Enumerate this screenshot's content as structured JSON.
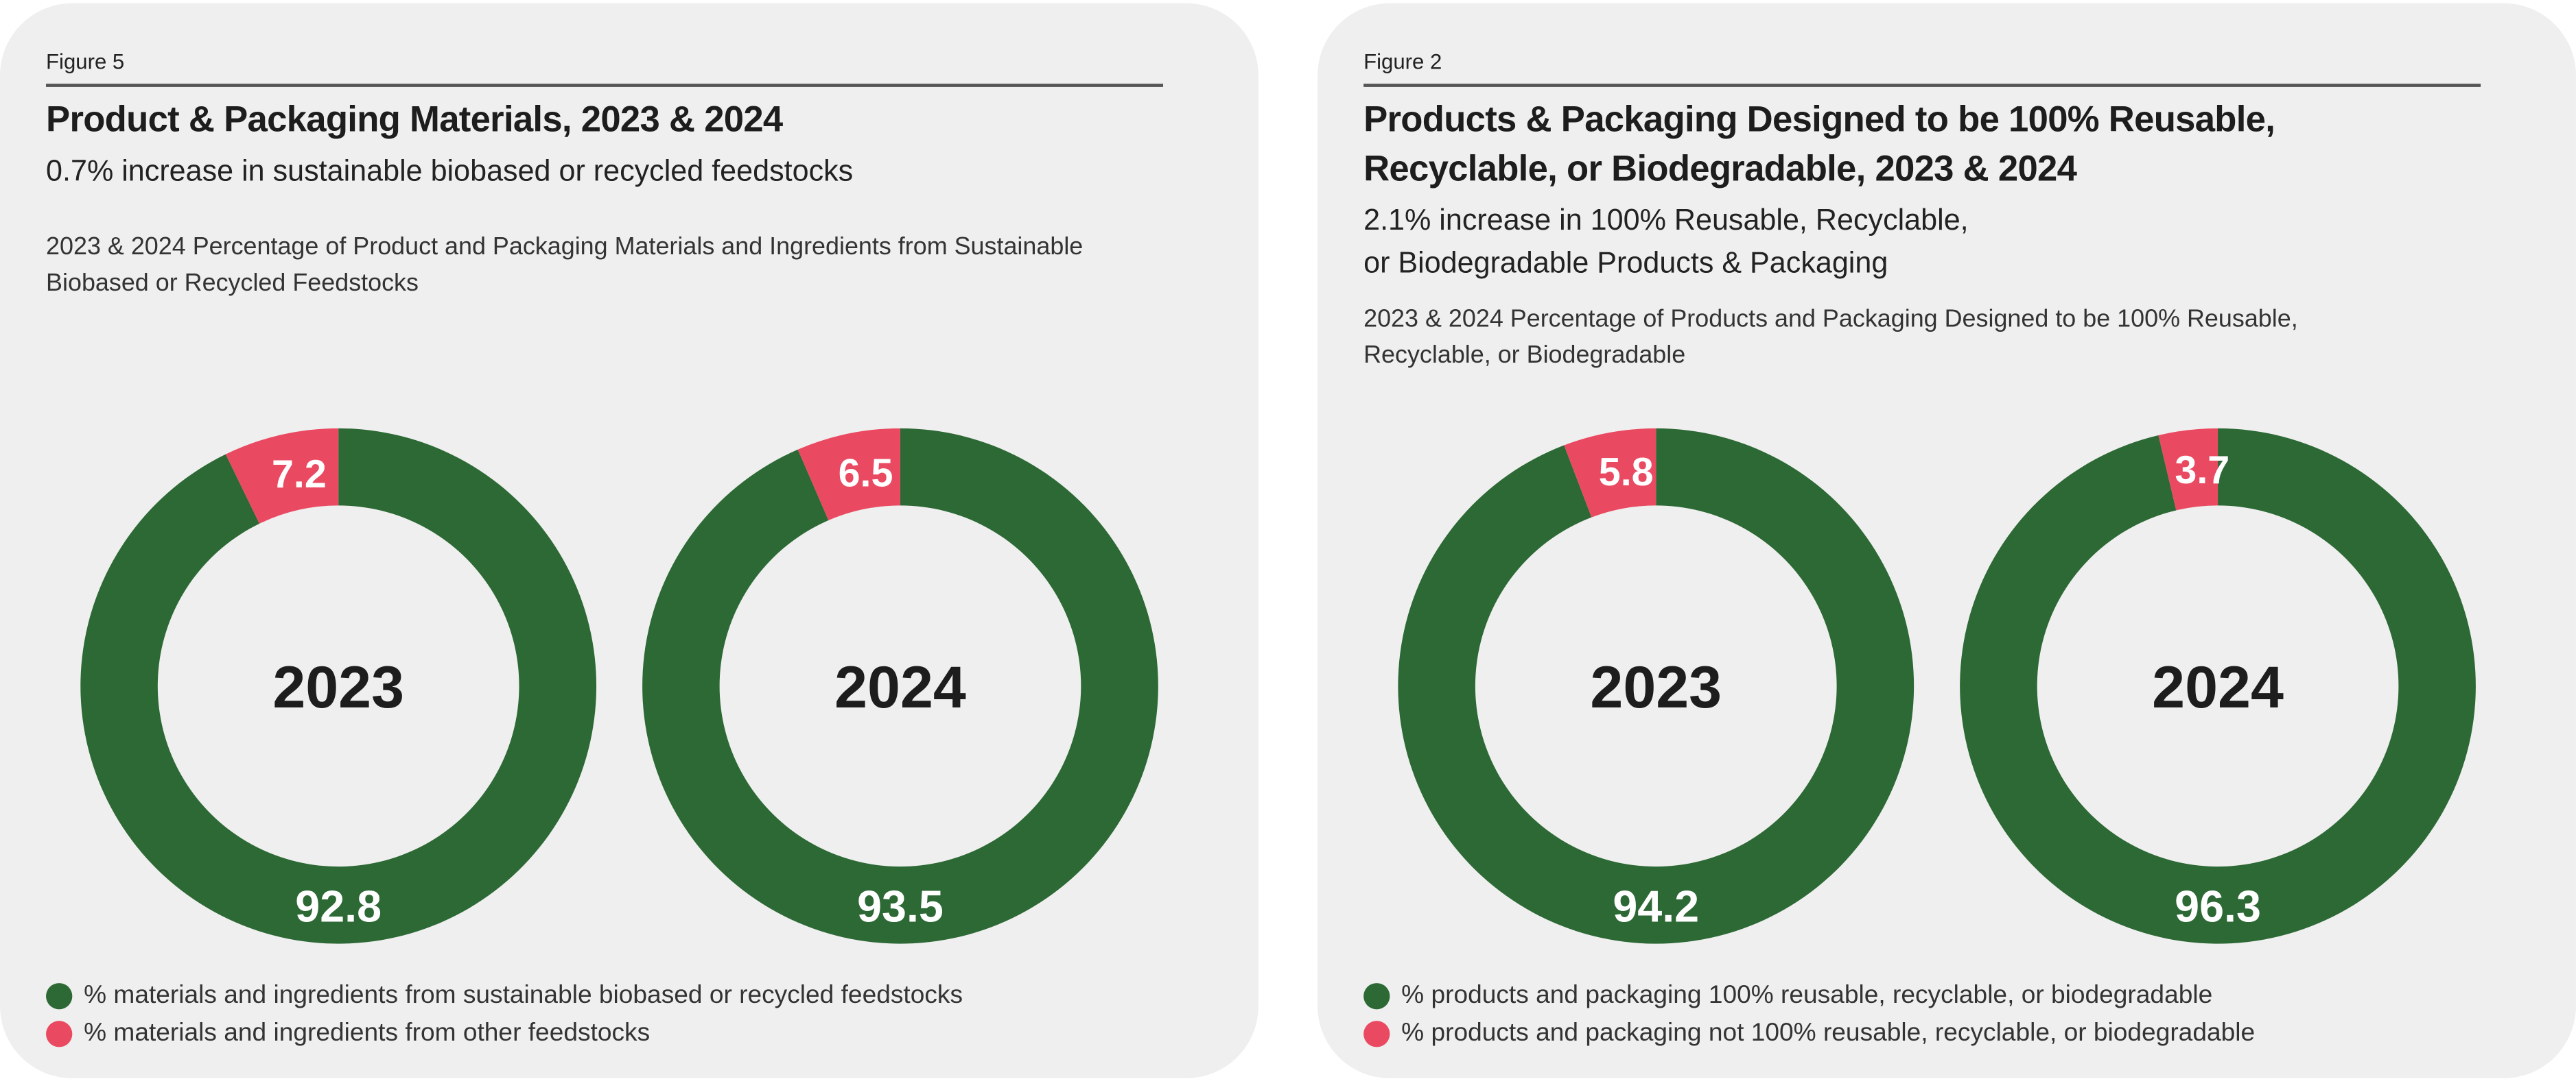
{
  "colors": {
    "green": "#2c6934",
    "red": "#ea4a61",
    "card": "#efefef"
  },
  "chart_data": [
    {
      "type": "pie",
      "figure_label": "Figure 5",
      "title": "Product & Packaging Materials, 2023 & 2024",
      "subtitle": "0.7% increase in sustainable biobased or recycled feedstocks",
      "description": "2023 & 2024 Percentage of Product and Packaging Materials and Ingredients from Sustainable Biobased or Recycled Feedstocks",
      "legend": [
        {
          "label": "% materials and ingredients from sustainable biobased or recycled feedstocks",
          "color": "#2c6934"
        },
        {
          "label": "% materials and ingredients from other feedstocks",
          "color": "#ea4a61"
        }
      ],
      "donuts": [
        {
          "center_label": "2023",
          "values": [
            92.8,
            7.2
          ],
          "value_labels": [
            "92.8",
            "7.2"
          ]
        },
        {
          "center_label": "2024",
          "values": [
            93.5,
            6.5
          ],
          "value_labels": [
            "93.5",
            "6.5"
          ]
        }
      ]
    },
    {
      "type": "pie",
      "figure_label": "Figure 2",
      "title": "Products & Packaging Designed to be 100% Reusable, Recyclable, or Biodegradable, 2023 & 2024",
      "subtitle_lines": [
        "2.1% increase in 100% Reusable, Recyclable,",
        "or Biodegradable Products & Packaging"
      ],
      "description": "2023 & 2024 Percentage of Products and Packaging Designed to be 100% Reusable, Recyclable, or Biodegradable",
      "legend": [
        {
          "label": "% products and packaging 100% reusable, recyclable, or biodegradable",
          "color": "#2c6934"
        },
        {
          "label": "% products and packaging not 100% reusable, recyclable, or biodegradable",
          "color": "#ea4a61"
        }
      ],
      "donuts": [
        {
          "center_label": "2023",
          "values": [
            94.2,
            5.8
          ],
          "value_labels": [
            "94.2",
            "5.8"
          ]
        },
        {
          "center_label": "2024",
          "values": [
            96.3,
            3.7
          ],
          "value_labels": [
            "96.3",
            "3.7"
          ]
        }
      ]
    }
  ]
}
